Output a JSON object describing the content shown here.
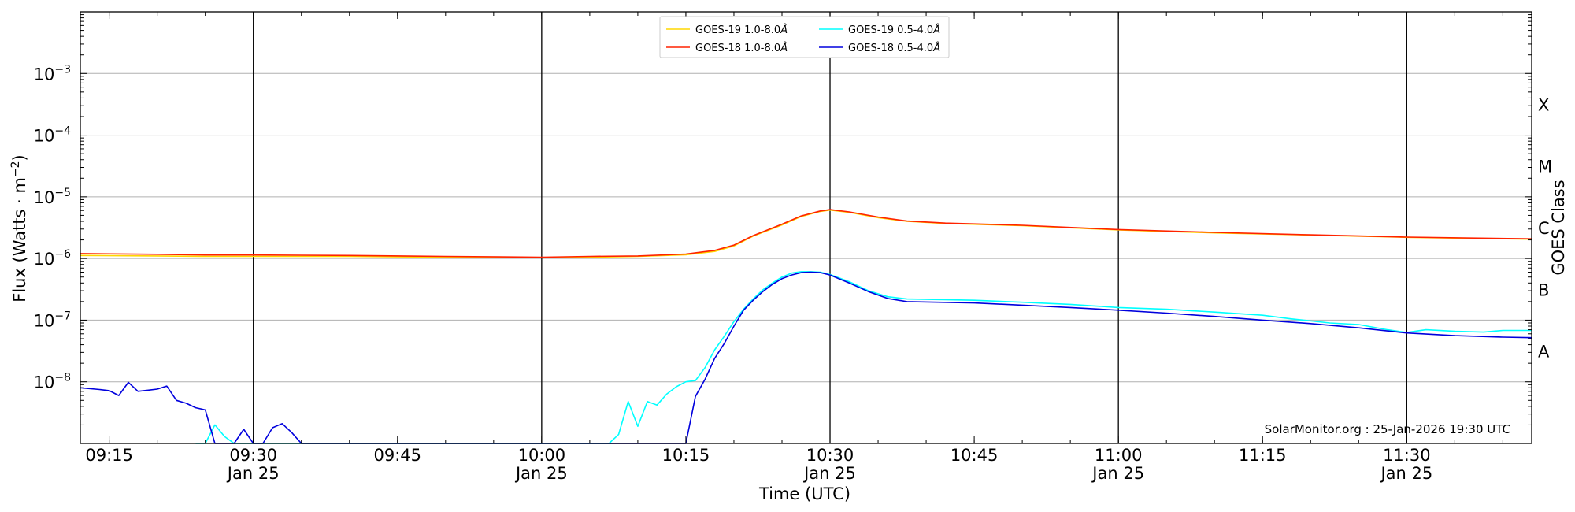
{
  "chart_data": {
    "type": "line",
    "xlabel": "Time (UTC)",
    "ylabel": "Flux (Watts · m",
    "ylabel_sup": "−2",
    "ylabel_close": ")",
    "right_label": "GOES Class",
    "y_scale": "log",
    "xlim": [
      "2026-01-25T09:12",
      "2026-01-25T11:43"
    ],
    "ylim": [
      1e-09,
      0.01
    ],
    "x_ticks": [
      {
        "t": "09:15",
        "label": "09:15",
        "date": ""
      },
      {
        "t": "09:30",
        "label": "09:30",
        "date": "Jan 25"
      },
      {
        "t": "09:45",
        "label": "09:45",
        "date": ""
      },
      {
        "t": "10:00",
        "label": "10:00",
        "date": "Jan 25"
      },
      {
        "t": "10:15",
        "label": "10:15",
        "date": ""
      },
      {
        "t": "10:30",
        "label": "10:30",
        "date": "Jan 25"
      },
      {
        "t": "10:45",
        "label": "10:45",
        "date": ""
      },
      {
        "t": "11:00",
        "label": "11:00",
        "date": "Jan 25"
      },
      {
        "t": "11:15",
        "label": "11:15",
        "date": ""
      },
      {
        "t": "11:30",
        "label": "11:30",
        "date": "Jan 25"
      }
    ],
    "vertical_lines": [
      "09:30",
      "10:00",
      "10:30",
      "11:00",
      "11:30"
    ],
    "y_ticks": [
      {
        "exp": -8,
        "base": "10",
        "sup": "−8"
      },
      {
        "exp": -7,
        "base": "10",
        "sup": "−7"
      },
      {
        "exp": -6,
        "base": "10",
        "sup": "−6"
      },
      {
        "exp": -5,
        "base": "10",
        "sup": "−5"
      },
      {
        "exp": -4,
        "base": "10",
        "sup": "−4"
      },
      {
        "exp": -3,
        "base": "10",
        "sup": "−3"
      }
    ],
    "goes_classes": [
      {
        "label": "A",
        "center_exp": -7.5
      },
      {
        "label": "B",
        "center_exp": -6.5
      },
      {
        "label": "C",
        "center_exp": -5.5
      },
      {
        "label": "M",
        "center_exp": -4.5
      },
      {
        "label": "X",
        "center_exp": -3.5
      }
    ],
    "legend_position": "top-center",
    "annotation": "SolarMonitor.org : 25-Jan-2026 19:30 UTC",
    "series": [
      {
        "name": "GOES-19 1.0-8.0",
        "unit_symbol": "Å",
        "color": "#ffd700",
        "points": [
          [
            "09:12",
            1.12e-06
          ],
          [
            "09:20",
            1.1e-06
          ],
          [
            "09:25",
            1.08e-06
          ],
          [
            "09:30",
            1.08e-06
          ],
          [
            "09:40",
            1.08e-06
          ],
          [
            "09:50",
            1.05e-06
          ],
          [
            "10:00",
            1.03e-06
          ],
          [
            "10:05",
            1.05e-06
          ],
          [
            "10:10",
            1.08e-06
          ],
          [
            "10:15",
            1.15e-06
          ],
          [
            "10:18",
            1.3e-06
          ],
          [
            "10:20",
            1.6e-06
          ],
          [
            "10:22",
            2.3e-06
          ],
          [
            "10:25",
            3.5e-06
          ],
          [
            "10:27",
            4.8e-06
          ],
          [
            "10:29",
            5.8e-06
          ],
          [
            "10:30",
            6.1e-06
          ],
          [
            "10:32",
            5.6e-06
          ],
          [
            "10:35",
            4.6e-06
          ],
          [
            "10:38",
            4e-06
          ],
          [
            "10:42",
            3.7e-06
          ],
          [
            "10:50",
            3.4e-06
          ],
          [
            "11:00",
            2.9e-06
          ],
          [
            "11:10",
            2.6e-06
          ],
          [
            "11:20",
            2.4e-06
          ],
          [
            "11:30",
            2.2e-06
          ],
          [
            "11:43",
            2.05e-06
          ]
        ]
      },
      {
        "name": "GOES-18 1.0-8.0",
        "unit_symbol": "Å",
        "color": "#ff2200",
        "points": [
          [
            "09:12",
            1.2e-06
          ],
          [
            "09:20",
            1.17e-06
          ],
          [
            "09:25",
            1.14e-06
          ],
          [
            "09:30",
            1.14e-06
          ],
          [
            "09:40",
            1.12e-06
          ],
          [
            "09:50",
            1.08e-06
          ],
          [
            "10:00",
            1.05e-06
          ],
          [
            "10:05",
            1.08e-06
          ],
          [
            "10:10",
            1.1e-06
          ],
          [
            "10:15",
            1.18e-06
          ],
          [
            "10:18",
            1.35e-06
          ],
          [
            "10:20",
            1.65e-06
          ],
          [
            "10:22",
            2.35e-06
          ],
          [
            "10:25",
            3.6e-06
          ],
          [
            "10:27",
            4.9e-06
          ],
          [
            "10:29",
            5.9e-06
          ],
          [
            "10:30",
            6.2e-06
          ],
          [
            "10:32",
            5.7e-06
          ],
          [
            "10:35",
            4.7e-06
          ],
          [
            "10:38",
            4.05e-06
          ],
          [
            "10:42",
            3.75e-06
          ],
          [
            "10:50",
            3.45e-06
          ],
          [
            "11:00",
            2.95e-06
          ],
          [
            "11:10",
            2.65e-06
          ],
          [
            "11:20",
            2.42e-06
          ],
          [
            "11:30",
            2.22e-06
          ],
          [
            "11:43",
            2.08e-06
          ]
        ]
      },
      {
        "name": "GOES-19 0.5-4.0",
        "unit_symbol": "Å",
        "color": "#00ffff",
        "points": [
          [
            "09:24",
            1e-09
          ],
          [
            "09:25",
            1e-09
          ],
          [
            "09:26",
            2e-09
          ],
          [
            "09:27",
            1.3e-09
          ],
          [
            "09:28",
            1e-09
          ],
          [
            "10:07",
            1e-09
          ],
          [
            "10:08",
            1.4e-09
          ],
          [
            "10:09",
            4.8e-09
          ],
          [
            "10:10",
            1.9e-09
          ],
          [
            "10:11",
            4.8e-09
          ],
          [
            "10:12",
            4.2e-09
          ],
          [
            "10:13",
            6.3e-09
          ],
          [
            "10:14",
            8.3e-09
          ],
          [
            "10:15",
            1e-08
          ],
          [
            "10:16",
            1.05e-08
          ],
          [
            "10:17",
            1.7e-08
          ],
          [
            "10:18",
            3.3e-08
          ],
          [
            "10:19",
            5.5e-08
          ],
          [
            "10:20",
            9.5e-08
          ],
          [
            "10:21",
            1.5e-07
          ],
          [
            "10:22",
            2.2e-07
          ],
          [
            "10:23",
            3.1e-07
          ],
          [
            "10:24",
            4e-07
          ],
          [
            "10:25",
            5e-07
          ],
          [
            "10:26",
            5.8e-07
          ],
          [
            "10:27",
            6.1e-07
          ],
          [
            "10:28",
            6.1e-07
          ],
          [
            "10:29",
            6e-07
          ],
          [
            "10:30",
            5.5e-07
          ],
          [
            "10:32",
            4.2e-07
          ],
          [
            "10:34",
            3e-07
          ],
          [
            "10:36",
            2.4e-07
          ],
          [
            "10:38",
            2.2e-07
          ],
          [
            "10:45",
            2.1e-07
          ],
          [
            "10:50",
            1.95e-07
          ],
          [
            "10:55",
            1.8e-07
          ],
          [
            "11:00",
            1.6e-07
          ],
          [
            "11:05",
            1.5e-07
          ],
          [
            "11:10",
            1.35e-07
          ],
          [
            "11:15",
            1.2e-07
          ],
          [
            "11:18",
            1.05e-07
          ],
          [
            "11:22",
            9e-08
          ],
          [
            "11:25",
            8.5e-08
          ],
          [
            "11:28",
            7e-08
          ],
          [
            "11:30",
            6.3e-08
          ],
          [
            "11:32",
            7e-08
          ],
          [
            "11:35",
            6.6e-08
          ],
          [
            "11:38",
            6.4e-08
          ],
          [
            "11:40",
            6.8e-08
          ],
          [
            "11:43",
            6.8e-08
          ]
        ]
      },
      {
        "name": "GOES-18 0.5-4.0",
        "unit_symbol": "Å",
        "color": "#0000dd",
        "points": [
          [
            "09:12",
            8e-09
          ],
          [
            "09:14",
            7.5e-09
          ],
          [
            "09:15",
            7.2e-09
          ],
          [
            "09:16",
            6e-09
          ],
          [
            "09:17",
            9.8e-09
          ],
          [
            "09:18",
            7e-09
          ],
          [
            "09:19",
            7.3e-09
          ],
          [
            "09:20",
            7.6e-09
          ],
          [
            "09:21",
            8.5e-09
          ],
          [
            "09:22",
            5e-09
          ],
          [
            "09:23",
            4.5e-09
          ],
          [
            "09:24",
            3.8e-09
          ],
          [
            "09:25",
            3.5e-09
          ],
          [
            "09:26",
            1e-09
          ],
          [
            "09:27",
            1e-09
          ],
          [
            "09:28",
            1e-09
          ],
          [
            "09:29",
            1.7e-09
          ],
          [
            "09:30",
            1e-09
          ],
          [
            "09:31",
            1e-09
          ],
          [
            "09:32",
            1.8e-09
          ],
          [
            "09:33",
            2.1e-09
          ],
          [
            "09:34",
            1.5e-09
          ],
          [
            "09:35",
            1e-09
          ],
          [
            "10:15",
            1e-09
          ],
          [
            "10:16",
            5.8e-09
          ],
          [
            "10:17",
            1.1e-08
          ],
          [
            "10:18",
            2.4e-08
          ],
          [
            "10:19",
            4.2e-08
          ],
          [
            "10:20",
            8e-08
          ],
          [
            "10:21",
            1.45e-07
          ],
          [
            "10:22",
            2.1e-07
          ],
          [
            "10:23",
            2.9e-07
          ],
          [
            "10:24",
            3.8e-07
          ],
          [
            "10:25",
            4.7e-07
          ],
          [
            "10:26",
            5.4e-07
          ],
          [
            "10:27",
            5.9e-07
          ],
          [
            "10:28",
            6e-07
          ],
          [
            "10:29",
            5.9e-07
          ],
          [
            "10:30",
            5.4e-07
          ],
          [
            "10:32",
            4e-07
          ],
          [
            "10:34",
            2.9e-07
          ],
          [
            "10:36",
            2.25e-07
          ],
          [
            "10:38",
            2e-07
          ],
          [
            "10:45",
            1.9e-07
          ],
          [
            "10:50",
            1.75e-07
          ],
          [
            "10:55",
            1.6e-07
          ],
          [
            "11:00",
            1.45e-07
          ],
          [
            "11:05",
            1.3e-07
          ],
          [
            "11:10",
            1.15e-07
          ],
          [
            "11:15",
            1e-07
          ],
          [
            "11:20",
            8.8e-08
          ],
          [
            "11:25",
            7.5e-08
          ],
          [
            "11:30",
            6.2e-08
          ],
          [
            "11:35",
            5.6e-08
          ],
          [
            "11:40",
            5.3e-08
          ],
          [
            "11:43",
            5.2e-08
          ]
        ]
      }
    ]
  }
}
